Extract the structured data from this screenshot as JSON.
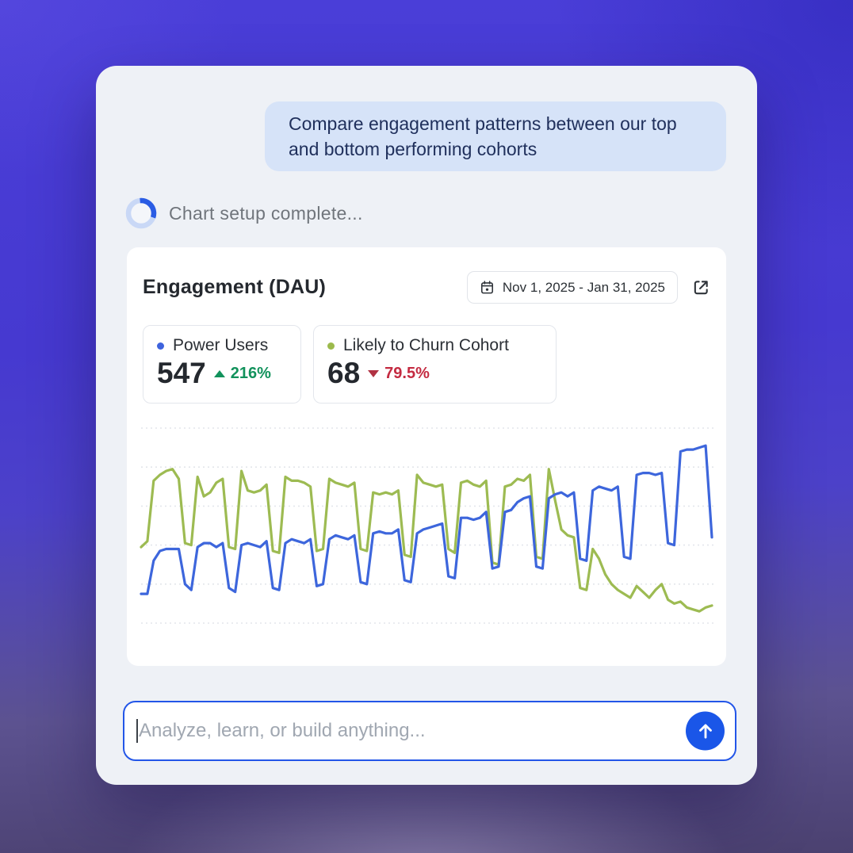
{
  "chat": {
    "user_message": "Compare engagement patterns between our top and bottom performing cohorts"
  },
  "status": {
    "text": "Chart setup complete...",
    "spinner_icon": "loading-spinner",
    "spinner_colors": {
      "track": "#c9d8f6",
      "arc": "#2a5ce4"
    }
  },
  "chart_card": {
    "title": "Engagement (DAU)",
    "date_range": "Nov 1, 2025 - Jan 31, 2025",
    "calendar_icon": "calendar",
    "external_icon": "open-in-new",
    "stats": [
      {
        "label": "Power Users",
        "value": "547",
        "delta": "216%",
        "direction": "up",
        "dot_color": "#3e63dd",
        "delta_color": "#12925c"
      },
      {
        "label": "Likely to Churn Cohort",
        "value": "68",
        "delta": "79.5%",
        "direction": "down",
        "dot_color": "#9cba4c",
        "delta_color": "#c42b41"
      }
    ]
  },
  "chart_data": {
    "type": "line",
    "title": "Engagement (DAU)",
    "x_range": [
      "Nov 1, 2025",
      "Jan 31, 2025"
    ],
    "x_unit": "day",
    "x_labels_visible": false,
    "y_labels_visible": false,
    "ylim": [
      0,
      100
    ],
    "gridlines": {
      "count": 6,
      "style": "horizontal-dashed"
    },
    "pattern_note": "daily values, weekday-high / weekend-low cycle",
    "series": [
      {
        "name": "Power Users",
        "color": "#3d66dc",
        "current_value": 547,
        "change_pct": "+216%",
        "values": [
          15,
          15,
          32,
          37,
          38,
          38,
          38,
          20,
          17,
          39,
          41,
          41,
          39,
          41,
          18,
          16,
          40,
          41,
          40,
          39,
          42,
          18,
          17,
          41,
          43,
          42,
          41,
          43,
          19,
          20,
          43,
          45,
          44,
          43,
          45,
          21,
          20,
          46,
          47,
          46,
          46,
          48,
          22,
          21,
          46,
          48,
          49,
          50,
          51,
          24,
          23,
          54,
          54,
          53,
          54,
          57,
          28,
          29,
          57,
          58,
          62,
          64,
          65,
          29,
          28,
          64,
          66,
          67,
          65,
          67,
          33,
          32,
          68,
          70,
          69,
          68,
          70,
          34,
          33,
          76,
          77,
          77,
          76,
          77,
          41,
          40,
          88,
          89,
          89,
          90,
          91,
          44
        ]
      },
      {
        "name": "Likely to Churn Cohort",
        "color": "#9dbb52",
        "current_value": 68,
        "change_pct": "-79.5%",
        "values": [
          39,
          42,
          73,
          76,
          78,
          79,
          74,
          41,
          40,
          75,
          65,
          67,
          72,
          74,
          39,
          38,
          78,
          68,
          67,
          68,
          71,
          37,
          36,
          75,
          73,
          73,
          72,
          70,
          37,
          38,
          74,
          72,
          71,
          70,
          72,
          38,
          37,
          67,
          66,
          67,
          66,
          68,
          35,
          34,
          76,
          72,
          71,
          70,
          71,
          38,
          36,
          72,
          73,
          71,
          70,
          73,
          31,
          30,
          70,
          71,
          74,
          73,
          76,
          34,
          33,
          79,
          63,
          48,
          45,
          44,
          18,
          17,
          38,
          33,
          25,
          20,
          17,
          15,
          13,
          19,
          16,
          13,
          17,
          20,
          12,
          10,
          11,
          8,
          7,
          6,
          8,
          9
        ]
      }
    ]
  },
  "composer": {
    "placeholder": "Analyze, learn, or build anything...",
    "send_icon": "arrow-up",
    "send_color": "#1a56e8",
    "border_color": "#2356e8"
  }
}
